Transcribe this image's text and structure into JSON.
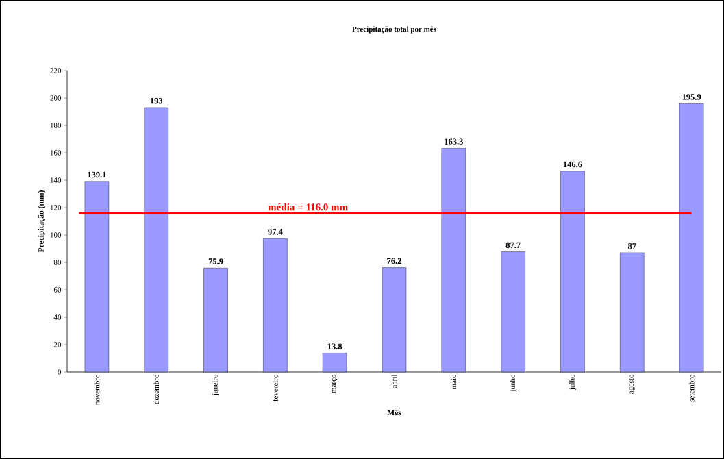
{
  "chart_data": {
    "type": "bar",
    "title": "Precipitação total por mês",
    "xlabel": "Mês",
    "ylabel": "Precipitação (mm)",
    "categories": [
      "novembro",
      "dezembro",
      "janeiro",
      "fevereiro",
      "março",
      "abril",
      "maio",
      "junho",
      "julho",
      "agosto",
      "setembro"
    ],
    "values": [
      139.1,
      193,
      75.9,
      97.4,
      13.8,
      76.2,
      163.3,
      87.7,
      146.6,
      87,
      195.9
    ],
    "color": "#9999ff",
    "data_labels": true,
    "grid": false,
    "ylim": [
      0,
      220
    ],
    "yticks": [
      0,
      20,
      40,
      60,
      80,
      100,
      120,
      140,
      160,
      180,
      200,
      220
    ],
    "ref_lines": [
      {
        "axis": "y",
        "value": 116.0,
        "label": "média = 116.0 mm",
        "color": "#ff0000"
      }
    ]
  }
}
